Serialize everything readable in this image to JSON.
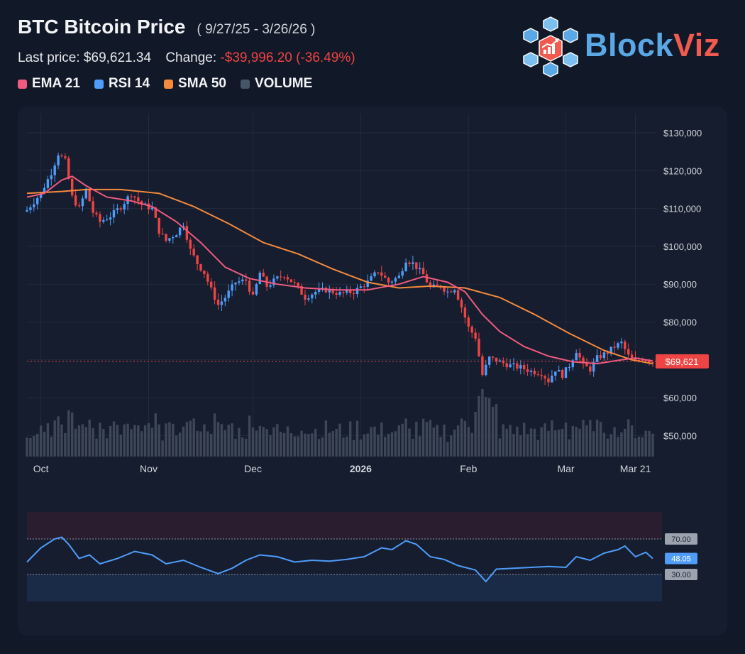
{
  "header": {
    "title": "BTC Bitcoin Price",
    "range": "( 9/27/25 - 3/26/26 )",
    "last_label": "Last price: $69,621.34",
    "change_label": "Change:",
    "change_value": "-$39,996.20 (-36.49%)"
  },
  "legend": [
    {
      "label": "EMA 21",
      "color": "#f05a7e"
    },
    {
      "label": "RSI 14",
      "color": "#4f9cf9"
    },
    {
      "label": "SMA 50",
      "color": "#f58a3c"
    },
    {
      "label": "VOLUME",
      "color": "#475569"
    }
  ],
  "brand": {
    "part1": "Block",
    "part2": "Viz"
  },
  "chart_data": {
    "type": "line",
    "price_axis": {
      "min": 45000,
      "max": 135000,
      "ticks": [
        130000,
        120000,
        110000,
        100000,
        90000,
        80000,
        70000,
        60000,
        50000
      ],
      "tick_labels": [
        "$130,000",
        "$120,000",
        "$110,000",
        "$100,000",
        "$90,000",
        "$80,000",
        "$70,000",
        "$60,000",
        "$50,000"
      ]
    },
    "x_axis": {
      "labels": [
        "Oct",
        "Nov",
        "Dec",
        "2026",
        "Feb",
        "Mar",
        "Mar 21"
      ],
      "bold": [
        false,
        false,
        false,
        true,
        false,
        false,
        false
      ]
    },
    "last_price_tag": "$69,621",
    "last_price_value": 69621,
    "close_series": [
      {
        "x": "2025-09-27",
        "y": 109600
      },
      {
        "x": "2025-10-01",
        "y": 114000
      },
      {
        "x": "2025-10-04",
        "y": 119500
      },
      {
        "x": "2025-10-06",
        "y": 124500
      },
      {
        "x": "2025-10-08",
        "y": 122500
      },
      {
        "x": "2025-10-10",
        "y": 113000
      },
      {
        "x": "2025-10-12",
        "y": 110000
      },
      {
        "x": "2025-10-14",
        "y": 115000
      },
      {
        "x": "2025-10-16",
        "y": 109000
      },
      {
        "x": "2025-10-18",
        "y": 106500
      },
      {
        "x": "2025-10-21",
        "y": 108000
      },
      {
        "x": "2025-10-24",
        "y": 110500
      },
      {
        "x": "2025-10-27",
        "y": 114000
      },
      {
        "x": "2025-10-30",
        "y": 111000
      },
      {
        "x": "2025-11-02",
        "y": 110000
      },
      {
        "x": "2025-11-04",
        "y": 104000
      },
      {
        "x": "2025-11-06",
        "y": 101500
      },
      {
        "x": "2025-11-09",
        "y": 103500
      },
      {
        "x": "2025-11-11",
        "y": 106000
      },
      {
        "x": "2025-11-13",
        "y": 99000
      },
      {
        "x": "2025-11-15",
        "y": 95500
      },
      {
        "x": "2025-11-17",
        "y": 93000
      },
      {
        "x": "2025-11-19",
        "y": 88500
      },
      {
        "x": "2025-11-21",
        "y": 84500
      },
      {
        "x": "2025-11-23",
        "y": 86500
      },
      {
        "x": "2025-11-26",
        "y": 90500
      },
      {
        "x": "2025-11-29",
        "y": 91000
      },
      {
        "x": "2025-12-01",
        "y": 86500
      },
      {
        "x": "2025-12-03",
        "y": 93000
      },
      {
        "x": "2025-12-05",
        "y": 89500
      },
      {
        "x": "2025-12-08",
        "y": 91500
      },
      {
        "x": "2025-12-10",
        "y": 92500
      },
      {
        "x": "2025-12-13",
        "y": 90000
      },
      {
        "x": "2025-12-16",
        "y": 86500
      },
      {
        "x": "2025-12-19",
        "y": 88000
      },
      {
        "x": "2025-12-22",
        "y": 88500
      },
      {
        "x": "2025-12-26",
        "y": 87500
      },
      {
        "x": "2025-12-30",
        "y": 88000
      },
      {
        "x": "2026-01-03",
        "y": 90500
      },
      {
        "x": "2026-01-06",
        "y": 93500
      },
      {
        "x": "2026-01-09",
        "y": 90500
      },
      {
        "x": "2026-01-12",
        "y": 92000
      },
      {
        "x": "2026-01-14",
        "y": 96500
      },
      {
        "x": "2026-01-16",
        "y": 95500
      },
      {
        "x": "2026-01-19",
        "y": 92500
      },
      {
        "x": "2026-01-21",
        "y": 89000
      },
      {
        "x": "2026-01-24",
        "y": 89500
      },
      {
        "x": "2026-01-26",
        "y": 88000
      },
      {
        "x": "2026-01-28",
        "y": 89000
      },
      {
        "x": "2026-01-30",
        "y": 84000
      },
      {
        "x": "2026-02-01",
        "y": 78500
      },
      {
        "x": "2026-02-03",
        "y": 76000
      },
      {
        "x": "2026-02-05",
        "y": 66000
      },
      {
        "x": "2026-02-07",
        "y": 70500
      },
      {
        "x": "2026-02-10",
        "y": 69500
      },
      {
        "x": "2026-02-13",
        "y": 68500
      },
      {
        "x": "2026-02-16",
        "y": 68000
      },
      {
        "x": "2026-02-19",
        "y": 67000
      },
      {
        "x": "2026-02-22",
        "y": 66500
      },
      {
        "x": "2026-02-24",
        "y": 64500
      },
      {
        "x": "2026-02-26",
        "y": 67500
      },
      {
        "x": "2026-02-28",
        "y": 66000
      },
      {
        "x": "2026-03-02",
        "y": 68500
      },
      {
        "x": "2026-03-04",
        "y": 72500
      },
      {
        "x": "2026-03-06",
        "y": 68500
      },
      {
        "x": "2026-03-08",
        "y": 67500
      },
      {
        "x": "2026-03-10",
        "y": 70500
      },
      {
        "x": "2026-03-13",
        "y": 72000
      },
      {
        "x": "2026-03-15",
        "y": 73500
      },
      {
        "x": "2026-03-17",
        "y": 74500
      },
      {
        "x": "2026-03-19",
        "y": 71000
      },
      {
        "x": "2026-03-21",
        "y": 69500
      },
      {
        "x": "2026-03-23",
        "y": 70500
      },
      {
        "x": "2026-03-26",
        "y": 69621
      }
    ],
    "ema21": [
      {
        "x": "2025-09-27",
        "y": 113000
      },
      {
        "x": "2025-10-02",
        "y": 114000
      },
      {
        "x": "2025-10-07",
        "y": 117500
      },
      {
        "x": "2025-10-10",
        "y": 118500
      },
      {
        "x": "2025-10-14",
        "y": 116000
      },
      {
        "x": "2025-10-20",
        "y": 113000
      },
      {
        "x": "2025-10-27",
        "y": 112000
      },
      {
        "x": "2025-11-02",
        "y": 110500
      },
      {
        "x": "2025-11-09",
        "y": 106500
      },
      {
        "x": "2025-11-16",
        "y": 101000
      },
      {
        "x": "2025-11-23",
        "y": 94500
      },
      {
        "x": "2025-11-30",
        "y": 91500
      },
      {
        "x": "2025-12-08",
        "y": 90000
      },
      {
        "x": "2025-12-16",
        "y": 89000
      },
      {
        "x": "2025-12-25",
        "y": 88500
      },
      {
        "x": "2026-01-03",
        "y": 88500
      },
      {
        "x": "2026-01-12",
        "y": 90000
      },
      {
        "x": "2026-01-19",
        "y": 92000
      },
      {
        "x": "2026-01-26",
        "y": 90500
      },
      {
        "x": "2026-01-31",
        "y": 88000
      },
      {
        "x": "2026-02-05",
        "y": 82000
      },
      {
        "x": "2026-02-10",
        "y": 77500
      },
      {
        "x": "2026-02-17",
        "y": 73500
      },
      {
        "x": "2026-02-24",
        "y": 71000
      },
      {
        "x": "2026-03-03",
        "y": 69500
      },
      {
        "x": "2026-03-10",
        "y": 69000
      },
      {
        "x": "2026-03-17",
        "y": 70000
      },
      {
        "x": "2026-03-21",
        "y": 70500
      },
      {
        "x": "2026-03-26",
        "y": 69700
      }
    ],
    "sma50": [
      {
        "x": "2025-09-27",
        "y": 114000
      },
      {
        "x": "2025-10-07",
        "y": 114500
      },
      {
        "x": "2025-10-14",
        "y": 115000
      },
      {
        "x": "2025-10-24",
        "y": 115000
      },
      {
        "x": "2025-11-04",
        "y": 114000
      },
      {
        "x": "2025-11-14",
        "y": 110500
      },
      {
        "x": "2025-11-24",
        "y": 106000
      },
      {
        "x": "2025-12-04",
        "y": 101000
      },
      {
        "x": "2025-12-14",
        "y": 98000
      },
      {
        "x": "2025-12-24",
        "y": 94000
      },
      {
        "x": "2026-01-03",
        "y": 90500
      },
      {
        "x": "2026-01-12",
        "y": 89000
      },
      {
        "x": "2026-01-21",
        "y": 89500
      },
      {
        "x": "2026-01-31",
        "y": 89000
      },
      {
        "x": "2026-02-10",
        "y": 86500
      },
      {
        "x": "2026-02-20",
        "y": 82000
      },
      {
        "x": "2026-03-02",
        "y": 77000
      },
      {
        "x": "2026-03-12",
        "y": 72500
      },
      {
        "x": "2026-03-20",
        "y": 70000
      },
      {
        "x": "2026-03-26",
        "y": 69000
      }
    ],
    "rsi": {
      "min": 0,
      "max": 100,
      "levels": [
        70,
        30
      ],
      "level_labels": [
        "70.00",
        "30.00"
      ],
      "current": 48.05,
      "current_label": "48.05",
      "series": [
        {
          "x": "2025-09-27",
          "y": 44
        },
        {
          "x": "2025-10-01",
          "y": 60
        },
        {
          "x": "2025-10-05",
          "y": 70
        },
        {
          "x": "2025-10-07",
          "y": 72
        },
        {
          "x": "2025-10-09",
          "y": 64
        },
        {
          "x": "2025-10-12",
          "y": 48
        },
        {
          "x": "2025-10-15",
          "y": 52
        },
        {
          "x": "2025-10-18",
          "y": 42
        },
        {
          "x": "2025-10-23",
          "y": 48
        },
        {
          "x": "2025-10-28",
          "y": 56
        },
        {
          "x": "2025-11-02",
          "y": 52
        },
        {
          "x": "2025-11-06",
          "y": 42
        },
        {
          "x": "2025-11-11",
          "y": 46
        },
        {
          "x": "2025-11-16",
          "y": 38
        },
        {
          "x": "2025-11-21",
          "y": 31
        },
        {
          "x": "2025-11-25",
          "y": 37
        },
        {
          "x": "2025-11-29",
          "y": 46
        },
        {
          "x": "2025-12-03",
          "y": 52
        },
        {
          "x": "2025-12-08",
          "y": 50
        },
        {
          "x": "2025-12-13",
          "y": 44
        },
        {
          "x": "2025-12-18",
          "y": 46
        },
        {
          "x": "2025-12-23",
          "y": 45
        },
        {
          "x": "2025-12-28",
          "y": 47
        },
        {
          "x": "2026-01-02",
          "y": 50
        },
        {
          "x": "2026-01-07",
          "y": 60
        },
        {
          "x": "2026-01-10",
          "y": 58
        },
        {
          "x": "2026-01-14",
          "y": 68
        },
        {
          "x": "2026-01-17",
          "y": 64
        },
        {
          "x": "2026-01-21",
          "y": 50
        },
        {
          "x": "2026-01-25",
          "y": 47
        },
        {
          "x": "2026-01-29",
          "y": 40
        },
        {
          "x": "2026-02-03",
          "y": 35
        },
        {
          "x": "2026-02-06",
          "y": 22
        },
        {
          "x": "2026-02-09",
          "y": 36
        },
        {
          "x": "2026-02-14",
          "y": 37
        },
        {
          "x": "2026-02-19",
          "y": 38
        },
        {
          "x": "2026-02-24",
          "y": 39
        },
        {
          "x": "2026-03-01",
          "y": 38
        },
        {
          "x": "2026-03-04",
          "y": 50
        },
        {
          "x": "2026-03-08",
          "y": 46
        },
        {
          "x": "2026-03-12",
          "y": 54
        },
        {
          "x": "2026-03-16",
          "y": 58
        },
        {
          "x": "2026-03-18",
          "y": 62
        },
        {
          "x": "2026-03-21",
          "y": 50
        },
        {
          "x": "2026-03-24",
          "y": 55
        },
        {
          "x": "2026-03-26",
          "y": 48
        }
      ]
    }
  }
}
